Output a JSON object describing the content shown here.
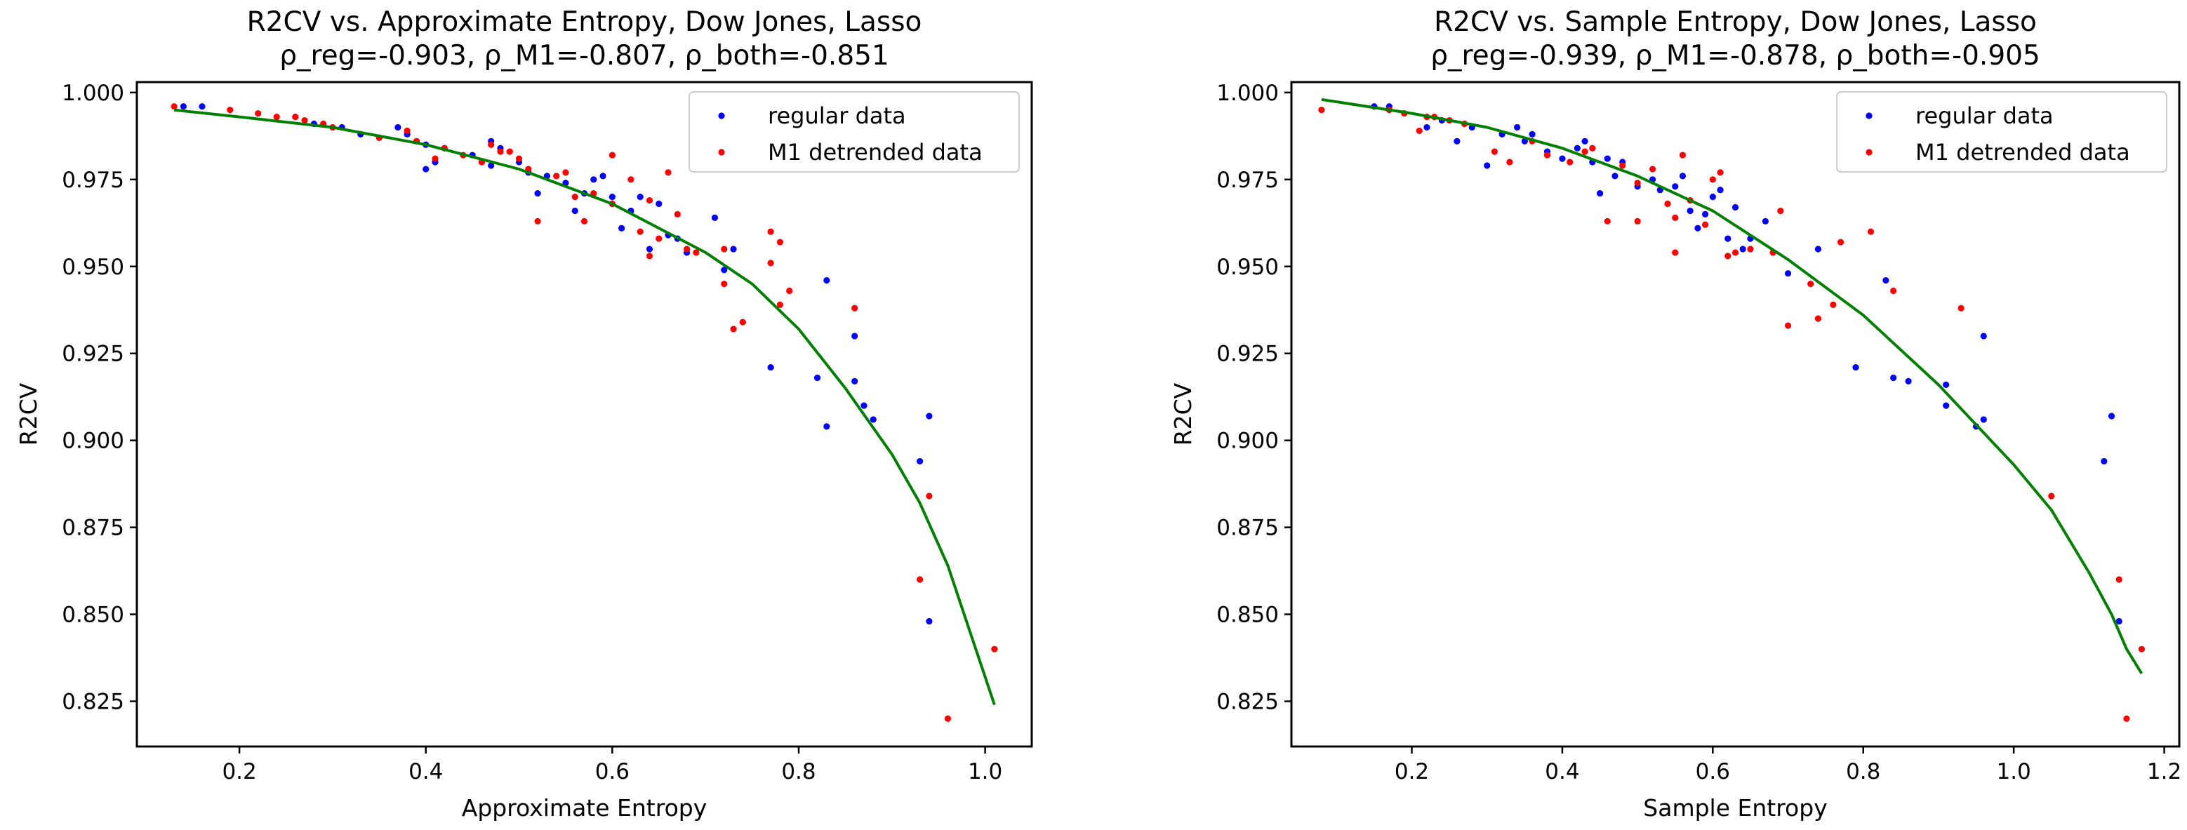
{
  "figure": {
    "background": "#ffffff"
  },
  "colors": {
    "regular": "#0000ff",
    "m1": "#ff0000",
    "fit": "#008000",
    "axes": "#000000"
  },
  "chart_data": [
    {
      "type": "scatter",
      "title": "R2CV vs. Approximate Entropy, Dow Jones, Lasso",
      "subtitle": "ρ_reg=-0.903, ρ_M1=-0.807, ρ_both=-0.851",
      "xlabel": "Approximate Entropy",
      "ylabel": "R2CV",
      "xlim": [
        0.09,
        1.05
      ],
      "ylim": [
        0.812,
        1.003
      ],
      "xticks": [
        0.2,
        0.4,
        0.6,
        0.8,
        1.0
      ],
      "xtick_labels": [
        "0.2",
        "0.4",
        "0.6",
        "0.8",
        "1.0"
      ],
      "yticks": [
        0.825,
        0.85,
        0.875,
        0.9,
        0.925,
        0.95,
        0.975,
        1.0
      ],
      "ytick_labels": [
        "0.825",
        "0.850",
        "0.875",
        "0.900",
        "0.925",
        "0.950",
        "0.975",
        "1.000"
      ],
      "grid": false,
      "legend_position": "top-right",
      "series": [
        {
          "name": "regular data",
          "color": "#0000ff",
          "points": [
            [
              0.14,
              0.996
            ],
            [
              0.16,
              0.996
            ],
            [
              0.28,
              0.991
            ],
            [
              0.31,
              0.99
            ],
            [
              0.33,
              0.988
            ],
            [
              0.35,
              0.987
            ],
            [
              0.37,
              0.99
            ],
            [
              0.38,
              0.988
            ],
            [
              0.39,
              0.986
            ],
            [
              0.4,
              0.985
            ],
            [
              0.4,
              0.978
            ],
            [
              0.41,
              0.98
            ],
            [
              0.42,
              0.984
            ],
            [
              0.45,
              0.982
            ],
            [
              0.46,
              0.98
            ],
            [
              0.47,
              0.979
            ],
            [
              0.47,
              0.986
            ],
            [
              0.48,
              0.984
            ],
            [
              0.5,
              0.98
            ],
            [
              0.51,
              0.977
            ],
            [
              0.52,
              0.971
            ],
            [
              0.53,
              0.976
            ],
            [
              0.55,
              0.974
            ],
            [
              0.56,
              0.966
            ],
            [
              0.57,
              0.971
            ],
            [
              0.58,
              0.975
            ],
            [
              0.59,
              0.976
            ],
            [
              0.6,
              0.97
            ],
            [
              0.61,
              0.961
            ],
            [
              0.62,
              0.966
            ],
            [
              0.63,
              0.97
            ],
            [
              0.64,
              0.955
            ],
            [
              0.65,
              0.968
            ],
            [
              0.66,
              0.959
            ],
            [
              0.67,
              0.958
            ],
            [
              0.68,
              0.954
            ],
            [
              0.71,
              0.964
            ],
            [
              0.72,
              0.949
            ],
            [
              0.73,
              0.955
            ],
            [
              0.77,
              0.921
            ],
            [
              0.82,
              0.918
            ],
            [
              0.83,
              0.946
            ],
            [
              0.83,
              0.904
            ],
            [
              0.86,
              0.917
            ],
            [
              0.86,
              0.93
            ],
            [
              0.87,
              0.91
            ],
            [
              0.88,
              0.906
            ],
            [
              0.93,
              0.894
            ],
            [
              0.94,
              0.907
            ],
            [
              0.94,
              0.848
            ]
          ]
        },
        {
          "name": "M1 detrended data",
          "color": "#ff0000",
          "points": [
            [
              0.13,
              0.996
            ],
            [
              0.19,
              0.995
            ],
            [
              0.22,
              0.994
            ],
            [
              0.24,
              0.993
            ],
            [
              0.26,
              0.993
            ],
            [
              0.27,
              0.992
            ],
            [
              0.29,
              0.991
            ],
            [
              0.3,
              0.99
            ],
            [
              0.35,
              0.987
            ],
            [
              0.38,
              0.989
            ],
            [
              0.39,
              0.986
            ],
            [
              0.41,
              0.981
            ],
            [
              0.42,
              0.984
            ],
            [
              0.44,
              0.982
            ],
            [
              0.46,
              0.98
            ],
            [
              0.47,
              0.985
            ],
            [
              0.48,
              0.983
            ],
            [
              0.49,
              0.983
            ],
            [
              0.5,
              0.981
            ],
            [
              0.51,
              0.978
            ],
            [
              0.52,
              0.963
            ],
            [
              0.54,
              0.976
            ],
            [
              0.55,
              0.977
            ],
            [
              0.56,
              0.97
            ],
            [
              0.57,
              0.963
            ],
            [
              0.58,
              0.971
            ],
            [
              0.6,
              0.968
            ],
            [
              0.6,
              0.982
            ],
            [
              0.62,
              0.975
            ],
            [
              0.63,
              0.96
            ],
            [
              0.64,
              0.969
            ],
            [
              0.64,
              0.953
            ],
            [
              0.65,
              0.958
            ],
            [
              0.66,
              0.977
            ],
            [
              0.67,
              0.965
            ],
            [
              0.68,
              0.955
            ],
            [
              0.69,
              0.954
            ],
            [
              0.72,
              0.955
            ],
            [
              0.72,
              0.945
            ],
            [
              0.73,
              0.932
            ],
            [
              0.74,
              0.934
            ],
            [
              0.77,
              0.96
            ],
            [
              0.77,
              0.951
            ],
            [
              0.78,
              0.939
            ],
            [
              0.78,
              0.957
            ],
            [
              0.79,
              0.943
            ],
            [
              0.86,
              0.938
            ],
            [
              0.93,
              0.86
            ],
            [
              0.94,
              0.884
            ],
            [
              0.96,
              0.82
            ],
            [
              1.01,
              0.84
            ]
          ]
        }
      ],
      "fit_line": [
        [
          0.13,
          0.995
        ],
        [
          0.2,
          0.993
        ],
        [
          0.3,
          0.99
        ],
        [
          0.4,
          0.985
        ],
        [
          0.5,
          0.978
        ],
        [
          0.6,
          0.968
        ],
        [
          0.7,
          0.954
        ],
        [
          0.75,
          0.945
        ],
        [
          0.8,
          0.932
        ],
        [
          0.85,
          0.915
        ],
        [
          0.9,
          0.896
        ],
        [
          0.93,
          0.882
        ],
        [
          0.96,
          0.864
        ],
        [
          0.99,
          0.84
        ],
        [
          1.01,
          0.824
        ]
      ]
    },
    {
      "type": "scatter",
      "title": "R2CV vs. Sample Entropy, Dow Jones, Lasso",
      "subtitle": "ρ_reg=-0.939, ρ_M1=-0.878, ρ_both=-0.905",
      "xlabel": "Sample Entropy",
      "ylabel": "R2CV",
      "xlim": [
        0.04,
        1.22
      ],
      "ylim": [
        0.812,
        1.003
      ],
      "xticks": [
        0.2,
        0.4,
        0.6,
        0.8,
        1.0,
        1.2
      ],
      "xtick_labels": [
        "0.2",
        "0.4",
        "0.6",
        "0.8",
        "1.0",
        "1.2"
      ],
      "yticks": [
        0.825,
        0.85,
        0.875,
        0.9,
        0.925,
        0.95,
        0.975,
        1.0
      ],
      "ytick_labels": [
        "0.825",
        "0.850",
        "0.875",
        "0.900",
        "0.925",
        "0.950",
        "0.975",
        "1.000"
      ],
      "grid": false,
      "legend_position": "top-right",
      "series": [
        {
          "name": "regular data",
          "color": "#0000ff",
          "points": [
            [
              0.15,
              0.996
            ],
            [
              0.17,
              0.996
            ],
            [
              0.22,
              0.99
            ],
            [
              0.24,
              0.992
            ],
            [
              0.26,
              0.986
            ],
            [
              0.28,
              0.99
            ],
            [
              0.3,
              0.979
            ],
            [
              0.32,
              0.988
            ],
            [
              0.34,
              0.99
            ],
            [
              0.35,
              0.986
            ],
            [
              0.36,
              0.988
            ],
            [
              0.38,
              0.983
            ],
            [
              0.4,
              0.981
            ],
            [
              0.42,
              0.984
            ],
            [
              0.43,
              0.986
            ],
            [
              0.44,
              0.98
            ],
            [
              0.45,
              0.971
            ],
            [
              0.46,
              0.981
            ],
            [
              0.47,
              0.976
            ],
            [
              0.48,
              0.98
            ],
            [
              0.5,
              0.973
            ],
            [
              0.52,
              0.975
            ],
            [
              0.53,
              0.972
            ],
            [
              0.55,
              0.973
            ],
            [
              0.56,
              0.976
            ],
            [
              0.57,
              0.966
            ],
            [
              0.58,
              0.961
            ],
            [
              0.59,
              0.965
            ],
            [
              0.6,
              0.97
            ],
            [
              0.61,
              0.972
            ],
            [
              0.62,
              0.958
            ],
            [
              0.63,
              0.967
            ],
            [
              0.64,
              0.955
            ],
            [
              0.65,
              0.958
            ],
            [
              0.67,
              0.963
            ],
            [
              0.7,
              0.948
            ],
            [
              0.74,
              0.955
            ],
            [
              0.79,
              0.921
            ],
            [
              0.83,
              0.946
            ],
            [
              0.84,
              0.918
            ],
            [
              0.86,
              0.917
            ],
            [
              0.91,
              0.91
            ],
            [
              0.91,
              0.916
            ],
            [
              0.95,
              0.904
            ],
            [
              0.96,
              0.93
            ],
            [
              0.96,
              0.906
            ],
            [
              1.12,
              0.894
            ],
            [
              1.13,
              0.907
            ],
            [
              1.14,
              0.848
            ]
          ]
        },
        {
          "name": "M1 detrended data",
          "color": "#ff0000",
          "points": [
            [
              0.08,
              0.995
            ],
            [
              0.17,
              0.995
            ],
            [
              0.19,
              0.994
            ],
            [
              0.21,
              0.989
            ],
            [
              0.22,
              0.993
            ],
            [
              0.23,
              0.993
            ],
            [
              0.25,
              0.992
            ],
            [
              0.27,
              0.991
            ],
            [
              0.31,
              0.983
            ],
            [
              0.33,
              0.98
            ],
            [
              0.36,
              0.986
            ],
            [
              0.38,
              0.982
            ],
            [
              0.41,
              0.98
            ],
            [
              0.43,
              0.983
            ],
            [
              0.44,
              0.984
            ],
            [
              0.46,
              0.963
            ],
            [
              0.48,
              0.979
            ],
            [
              0.5,
              0.963
            ],
            [
              0.5,
              0.974
            ],
            [
              0.52,
              0.978
            ],
            [
              0.54,
              0.968
            ],
            [
              0.55,
              0.954
            ],
            [
              0.55,
              0.964
            ],
            [
              0.56,
              0.982
            ],
            [
              0.57,
              0.969
            ],
            [
              0.59,
              0.962
            ],
            [
              0.6,
              0.975
            ],
            [
              0.61,
              0.977
            ],
            [
              0.62,
              0.953
            ],
            [
              0.63,
              0.954
            ],
            [
              0.65,
              0.955
            ],
            [
              0.68,
              0.954
            ],
            [
              0.69,
              0.966
            ],
            [
              0.7,
              0.933
            ],
            [
              0.73,
              0.945
            ],
            [
              0.74,
              0.935
            ],
            [
              0.76,
              0.939
            ],
            [
              0.77,
              0.957
            ],
            [
              0.81,
              0.96
            ],
            [
              0.84,
              0.943
            ],
            [
              0.93,
              0.938
            ],
            [
              1.05,
              0.884
            ],
            [
              1.14,
              0.86
            ],
            [
              1.15,
              0.82
            ],
            [
              1.17,
              0.84
            ]
          ]
        }
      ],
      "fit_line": [
        [
          0.08,
          0.998
        ],
        [
          0.2,
          0.994
        ],
        [
          0.3,
          0.99
        ],
        [
          0.4,
          0.984
        ],
        [
          0.5,
          0.976
        ],
        [
          0.6,
          0.966
        ],
        [
          0.7,
          0.952
        ],
        [
          0.8,
          0.936
        ],
        [
          0.9,
          0.916
        ],
        [
          1.0,
          0.893
        ],
        [
          1.05,
          0.88
        ],
        [
          1.1,
          0.862
        ],
        [
          1.13,
          0.85
        ],
        [
          1.15,
          0.84
        ],
        [
          1.17,
          0.833
        ]
      ]
    }
  ]
}
